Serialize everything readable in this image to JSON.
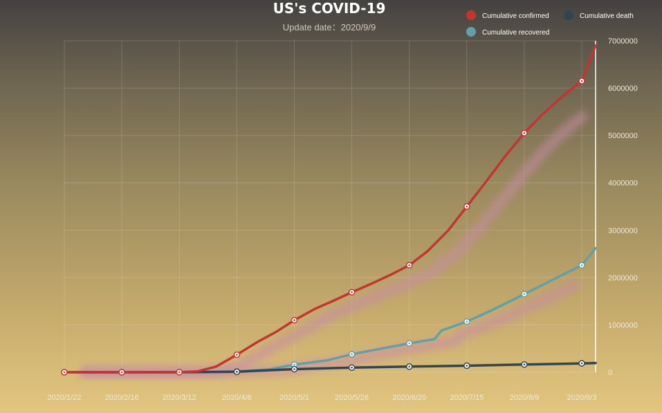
{
  "chart_data": {
    "type": "line",
    "title": "US's COVID-19",
    "subtitle": "Update date：2020/9/9",
    "xlabel": "",
    "ylabel": "",
    "x_ticks": [
      "2020/1/22",
      "2020/2/16",
      "2020/3/12",
      "2020/4/6",
      "2020/5/1",
      "2020/5/26",
      "2020/6/20",
      "2020/7/15",
      "2020/8/9",
      "2020/9/3"
    ],
    "x_range": [
      "2020/1/22",
      "2020/9/9"
    ],
    "ylim": [
      0,
      7000000
    ],
    "y_ticks": [
      0,
      1000000,
      2000000,
      3000000,
      4000000,
      5000000,
      6000000,
      7000000
    ],
    "y_axis_position": "right",
    "grid": true,
    "legend_position": "top-right",
    "series": [
      {
        "name": "Cumulative confirmed",
        "color": "#c23531",
        "points": [
          [
            "2020/1/22",
            0
          ],
          [
            "2020/2/16",
            15
          ],
          [
            "2020/3/12",
            1600
          ],
          [
            "2020/3/20",
            19000
          ],
          [
            "2020/3/28",
            120000
          ],
          [
            "2020/4/6",
            370000
          ],
          [
            "2020/4/15",
            640000
          ],
          [
            "2020/4/23",
            850000
          ],
          [
            "2020/5/1",
            1100000
          ],
          [
            "2020/5/10",
            1340000
          ],
          [
            "2020/5/18",
            1510000
          ],
          [
            "2020/5/26",
            1690000
          ],
          [
            "2020/6/4",
            1880000
          ],
          [
            "2020/6/12",
            2060000
          ],
          [
            "2020/6/20",
            2260000
          ],
          [
            "2020/6/28",
            2560000
          ],
          [
            "2020/7/7",
            3000000
          ],
          [
            "2020/7/15",
            3500000
          ],
          [
            "2020/7/23",
            4000000
          ],
          [
            "2020/8/1",
            4580000
          ],
          [
            "2020/8/9",
            5050000
          ],
          [
            "2020/8/17",
            5450000
          ],
          [
            "2020/8/25",
            5800000
          ],
          [
            "2020/9/3",
            6150000
          ],
          [
            "2020/9/9",
            6900000
          ]
        ],
        "markers": [
          [
            "2020/1/22",
            0
          ],
          [
            "2020/2/16",
            15
          ],
          [
            "2020/3/12",
            1600
          ],
          [
            "2020/4/6",
            370000
          ],
          [
            "2020/5/1",
            1100000
          ],
          [
            "2020/5/26",
            1690000
          ],
          [
            "2020/6/20",
            2260000
          ],
          [
            "2020/7/15",
            3500000
          ],
          [
            "2020/8/9",
            5050000
          ],
          [
            "2020/9/3",
            6150000
          ]
        ]
      },
      {
        "name": "Cumulative death",
        "color": "#2f4554",
        "points": [
          [
            "2020/1/22",
            0
          ],
          [
            "2020/2/16",
            0
          ],
          [
            "2020/3/12",
            40
          ],
          [
            "2020/4/6",
            11000
          ],
          [
            "2020/4/20",
            42000
          ],
          [
            "2020/5/1",
            65000
          ],
          [
            "2020/5/26",
            99000
          ],
          [
            "2020/6/20",
            120000
          ],
          [
            "2020/7/15",
            138000
          ],
          [
            "2020/8/9",
            163000
          ],
          [
            "2020/9/3",
            187000
          ],
          [
            "2020/9/9",
            195000
          ]
        ],
        "markers": [
          [
            "2020/4/6",
            11000
          ],
          [
            "2020/5/1",
            65000
          ],
          [
            "2020/5/26",
            99000
          ],
          [
            "2020/6/20",
            120000
          ],
          [
            "2020/7/15",
            138000
          ],
          [
            "2020/8/9",
            163000
          ],
          [
            "2020/9/3",
            187000
          ]
        ]
      },
      {
        "name": "Cumulative recovered",
        "color": "#61a0a8",
        "points": [
          [
            "2020/1/22",
            0
          ],
          [
            "2020/2/16",
            5
          ],
          [
            "2020/3/12",
            12
          ],
          [
            "2020/4/6",
            19000
          ],
          [
            "2020/4/20",
            60000
          ],
          [
            "2020/5/1",
            160000
          ],
          [
            "2020/5/15",
            250000
          ],
          [
            "2020/5/26",
            380000
          ],
          [
            "2020/6/8",
            500000
          ],
          [
            "2020/6/20",
            610000
          ],
          [
            "2020/7/1",
            700000
          ],
          [
            "2020/7/4",
            880000
          ],
          [
            "2020/7/15",
            1070000
          ],
          [
            "2020/7/25",
            1290000
          ],
          [
            "2020/8/9",
            1650000
          ],
          [
            "2020/8/22",
            1970000
          ],
          [
            "2020/9/3",
            2260000
          ],
          [
            "2020/9/9",
            2620000
          ]
        ],
        "markers": [
          [
            "2020/1/22",
            0
          ],
          [
            "2020/2/16",
            5
          ],
          [
            "2020/3/12",
            12
          ],
          [
            "2020/4/6",
            19000
          ],
          [
            "2020/5/1",
            160000
          ],
          [
            "2020/5/26",
            380000
          ],
          [
            "2020/6/20",
            610000
          ],
          [
            "2020/7/15",
            1070000
          ],
          [
            "2020/8/9",
            1650000
          ],
          [
            "2020/9/3",
            2260000
          ]
        ]
      }
    ]
  }
}
